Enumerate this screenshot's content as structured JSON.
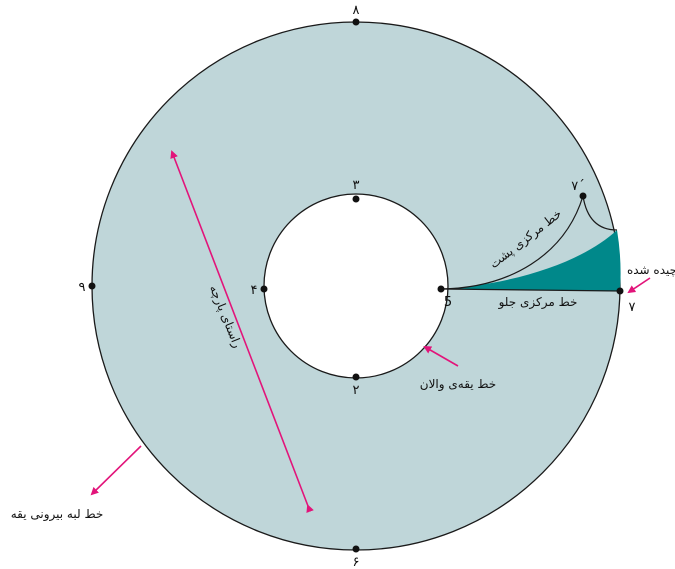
{
  "colors": {
    "fill": "#bfd6d9",
    "stroke": "#1a1a1a",
    "arrow": "#e2147a",
    "cut": "#00888a",
    "point": "#111111"
  },
  "points": {
    "p8": "۸",
    "p3": "۳",
    "p4": "۴",
    "p9": "۹",
    "p5": "5",
    "p2": "۲",
    "p6": "۶",
    "p7": "۷",
    "p7prime": "۷´"
  },
  "labels": {
    "grainline": "راستای پارچه",
    "back_center": "خط مرکزی پشت",
    "front_center": "خط مرکزی جلو",
    "cut_off": "چیده شده",
    "neckline": "خط یقه‌ی والان",
    "outer_edge": "خط لبه بیرونی یقه"
  }
}
